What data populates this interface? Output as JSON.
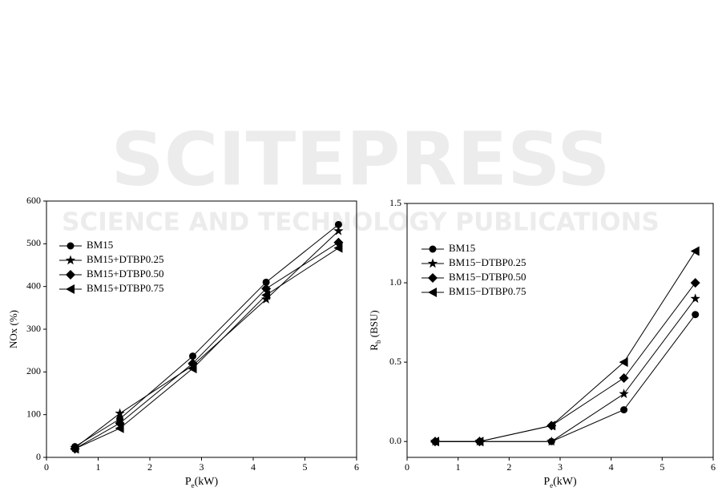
{
  "watermark": {
    "title": "SCITEPRESS",
    "subtitle": "SCIENCE AND TECHNOLOGY PUBLICATIONS"
  },
  "chart_data": [
    {
      "type": "line",
      "x_label": [
        "P",
        "e",
        "(kW)"
      ],
      "y_label": "NOx (%)",
      "x": [
        0.55,
        1.42,
        2.83,
        4.25,
        5.65
      ],
      "xlim": [
        0,
        6
      ],
      "xticks": [
        0,
        1,
        2,
        3,
        4,
        5,
        6
      ],
      "ylim": [
        0,
        600
      ],
      "yticks": [
        0,
        100,
        200,
        300,
        400,
        500,
        600
      ],
      "legend": "upper left",
      "series": [
        {
          "name": "BM15",
          "color": "#000000",
          "marker": "circle",
          "values": [
            25,
            90,
            237,
            410,
            545
          ]
        },
        {
          "name": "BM15+DTBP0.25",
          "color": "#000000",
          "marker": "star",
          "values": [
            22,
            103,
            215,
            370,
            530
          ]
        },
        {
          "name": "BM15+DTBP0.50",
          "color": "#000000",
          "marker": "diamond",
          "values": [
            20,
            80,
            220,
            395,
            503
          ]
        },
        {
          "name": "BM15+DTBP0.75",
          "color": "#000000",
          "marker": "triangle-left",
          "values": [
            20,
            68,
            208,
            380,
            490
          ]
        }
      ]
    },
    {
      "type": "line",
      "x_label": [
        "P",
        "e",
        "(kW)"
      ],
      "y_label": [
        "R",
        "b",
        " (BSU)"
      ],
      "x": [
        0.55,
        1.42,
        2.83,
        4.25,
        5.65
      ],
      "xlim": [
        0,
        6
      ],
      "xticks": [
        0,
        1,
        2,
        3,
        4,
        5,
        6
      ],
      "ylim": [
        -0.1,
        1.5
      ],
      "yticks": [
        {
          "value": 0,
          "label": "0.0"
        },
        {
          "value": 0.5,
          "label": "0.5"
        },
        {
          "value": 1,
          "label": "1.0"
        },
        {
          "value": 1.5,
          "label": "1.5"
        }
      ],
      "legend": "upper left",
      "series": [
        {
          "name": "BM15",
          "color": "#000000",
          "marker": "circle",
          "values": [
            0,
            0,
            0,
            0.2,
            0.8
          ]
        },
        {
          "name": "BM15−DTBP0.25",
          "color": "#000000",
          "marker": "star",
          "values": [
            0,
            0,
            0,
            0.3,
            0.9
          ]
        },
        {
          "name": "BM15−DTBP0.50",
          "color": "#000000",
          "marker": "diamond",
          "values": [
            0,
            0,
            0.1,
            0.4,
            1.0
          ]
        },
        {
          "name": "BM15−DTBP0.75",
          "color": "#000000",
          "marker": "triangle-left",
          "values": [
            0,
            0,
            0.1,
            0.5,
            1.2
          ]
        }
      ]
    }
  ]
}
